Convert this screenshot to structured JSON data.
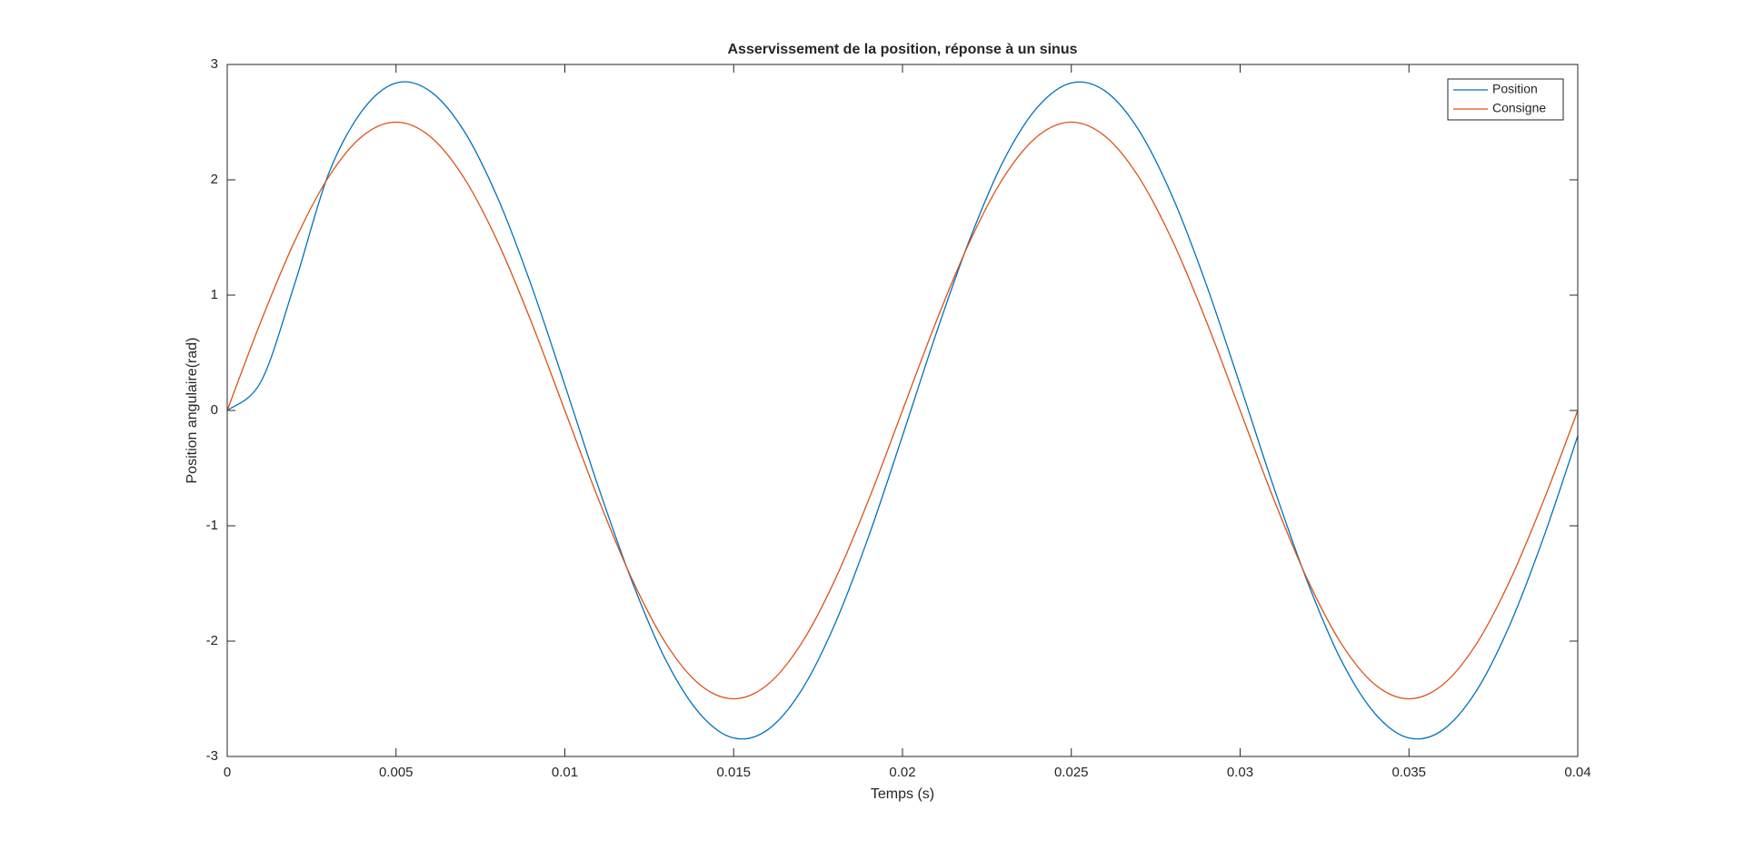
{
  "chart_data": {
    "type": "line",
    "title": "Asservissement de la position, réponse à un sinus",
    "x_label": "Temps (s)",
    "y_label": "Position angulaire(rad)",
    "x": [
      0,
      0.001,
      0.002,
      0.003,
      0.004,
      0.005,
      0.006,
      0.007,
      0.008,
      0.009,
      0.01,
      0.011,
      0.012,
      0.013,
      0.014,
      0.015,
      0.016,
      0.017,
      0.018,
      0.019,
      0.02,
      0.021,
      0.022,
      0.023,
      0.024,
      0.025,
      0.026,
      0.027,
      0.028,
      0.029,
      0.03,
      0.031,
      0.032,
      0.033,
      0.034,
      0.035,
      0.036,
      0.037,
      0.038,
      0.039,
      0.04
    ],
    "series": [
      {
        "name": "Position",
        "color": "#0072BD",
        "values": [
          0,
          0.25,
          1.1,
          2.05,
          2.6,
          2.84,
          2.77,
          2.43,
          1.85,
          1.09,
          0.22,
          -0.67,
          -1.49,
          -2.17,
          -2.63,
          -2.84,
          -2.77,
          -2.43,
          -1.85,
          -1.09,
          -0.22,
          0.67,
          1.49,
          2.17,
          2.63,
          2.84,
          2.77,
          2.43,
          1.85,
          1.09,
          0.22,
          -0.67,
          -1.49,
          -2.17,
          -2.63,
          -2.84,
          -2.77,
          -2.43,
          -1.85,
          -1.09,
          -0.22
        ]
      },
      {
        "name": "Consigne",
        "color": "#D95319",
        "values": [
          0,
          0.773,
          1.469,
          2.023,
          2.378,
          2.5,
          2.378,
          2.023,
          1.469,
          0.773,
          0,
          -0.773,
          -1.469,
          -2.023,
          -2.378,
          -2.5,
          -2.378,
          -2.023,
          -1.469,
          -0.773,
          0,
          0.773,
          1.469,
          2.023,
          2.378,
          2.5,
          2.378,
          2.023,
          1.469,
          0.773,
          0,
          -0.773,
          -1.469,
          -2.023,
          -2.378,
          -2.5,
          -2.378,
          -2.023,
          -1.469,
          -0.773,
          0
        ]
      }
    ],
    "xlim": [
      0,
      0.04
    ],
    "xticks": [
      0,
      0.005,
      0.01,
      0.015,
      0.02,
      0.025,
      0.03,
      0.035,
      0.04
    ],
    "ylim": [
      -3,
      3
    ],
    "yticks": [
      -3,
      -2,
      -1,
      0,
      1,
      2,
      3
    ],
    "legend": "upper right",
    "grid": false
  }
}
